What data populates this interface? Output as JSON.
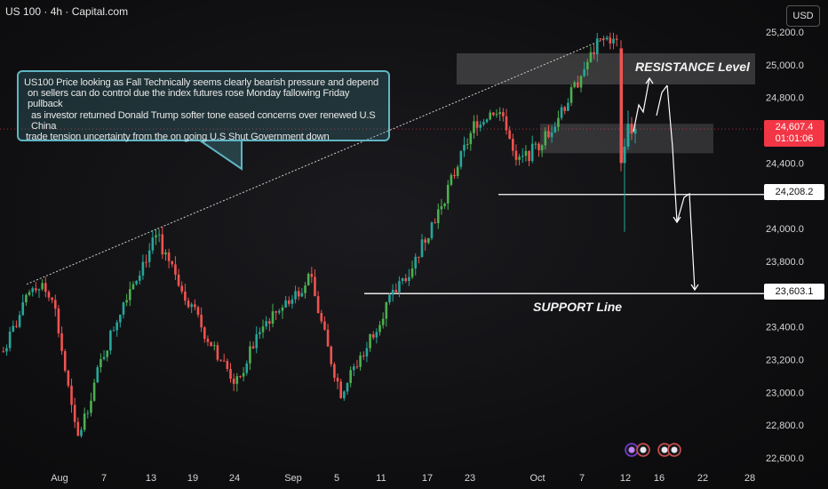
{
  "header": {
    "symbol_title": "US 100 · 4h · Capital.com",
    "currency": "USD"
  },
  "callout": {
    "lines": [
      "US100 Price looking as Fall Technically seems clearly bearish pressure and depend",
      "on sellers can do control due the index futures rose Monday fallowing Friday pullback",
      "as investor returned Donald Trump softer tone eased concerns over renewed U.S China",
      "trade tension uncertainty from the on going U.S Shut Government down"
    ]
  },
  "annotations": {
    "resistance": "RESISTANCE Level",
    "support": "SUPPORT Line"
  },
  "price_tags": {
    "current_price": "24,607.4",
    "countdown": "01:01:06",
    "resistance_price": "24,208.2",
    "support_price": "23,603.1"
  },
  "colors": {
    "bull": "#26a69a",
    "bull_bright": "#4caf50",
    "bear": "#ef5350",
    "current_tag": "#f23645",
    "line_tag": "#ffffff"
  },
  "chart_data": {
    "type": "candlestick",
    "x_tick_labels": [
      "Aug",
      "7",
      "13",
      "19",
      "24",
      "Sep",
      "5",
      "11",
      "17",
      "23",
      "Oct",
      "7",
      "12",
      "16",
      "22",
      "28"
    ],
    "y_tick_labels": [
      "25,200.0",
      "25,000.0",
      "24,800.0",
      "24,600.0",
      "24,400.0",
      "24,200.0",
      "24,000.0",
      "23,800.0",
      "23,600.0",
      "23,400.0",
      "23,200.0",
      "23,000.0",
      "22,800.0",
      "22,600.0"
    ],
    "y_tick_values": [
      25200,
      25000,
      24800,
      24600,
      24400,
      24200,
      24000,
      23800,
      23600,
      23400,
      23200,
      23000,
      22800,
      22600
    ],
    "ylim": [
      22560,
      25240
    ],
    "levels": {
      "resistance_line": 24208.2,
      "support_line": 23603.1,
      "current": 24607.4
    },
    "resistance_zone": [
      24880,
      25070
    ],
    "mid_zone": [
      24460,
      24640
    ],
    "trendline": [
      [
        0.0,
        23660
      ],
      [
        1.0,
        25170
      ]
    ],
    "path_nodes": [
      [
        0.0,
        23250
      ],
      [
        0.05,
        23660
      ],
      [
        0.08,
        23600
      ],
      [
        0.12,
        22700
      ],
      [
        0.16,
        23200
      ],
      [
        0.2,
        23600
      ],
      [
        0.25,
        23950
      ],
      [
        0.29,
        23650
      ],
      [
        0.33,
        23350
      ],
      [
        0.38,
        23050
      ],
      [
        0.42,
        23400
      ],
      [
        0.46,
        23550
      ],
      [
        0.5,
        23700
      ],
      [
        0.53,
        23250
      ],
      [
        0.55,
        23000
      ],
      [
        0.58,
        23200
      ],
      [
        0.62,
        23500
      ],
      [
        0.67,
        23800
      ],
      [
        0.72,
        24200
      ],
      [
        0.77,
        24650
      ],
      [
        0.81,
        24750
      ],
      [
        0.84,
        24400
      ],
      [
        0.87,
        24500
      ],
      [
        0.9,
        24650
      ],
      [
        0.93,
        24850
      ],
      [
        0.95,
        25000
      ],
      [
        0.97,
        25130
      ],
      [
        0.985,
        25160
      ],
      [
        1.0,
        25120
      ]
    ],
    "post_drop": [
      {
        "o": 25100,
        "h": 25150,
        "l": 24350,
        "c": 24400
      },
      {
        "o": 24400,
        "h": 24550,
        "l": 23980,
        "c": 24500
      },
      {
        "o": 24500,
        "h": 24720,
        "l": 24480,
        "c": 24640
      },
      {
        "o": 24640,
        "h": 24680,
        "l": 24540,
        "c": 24580
      },
      {
        "o": 24580,
        "h": 24640,
        "l": 24520,
        "c": 24607
      }
    ]
  }
}
